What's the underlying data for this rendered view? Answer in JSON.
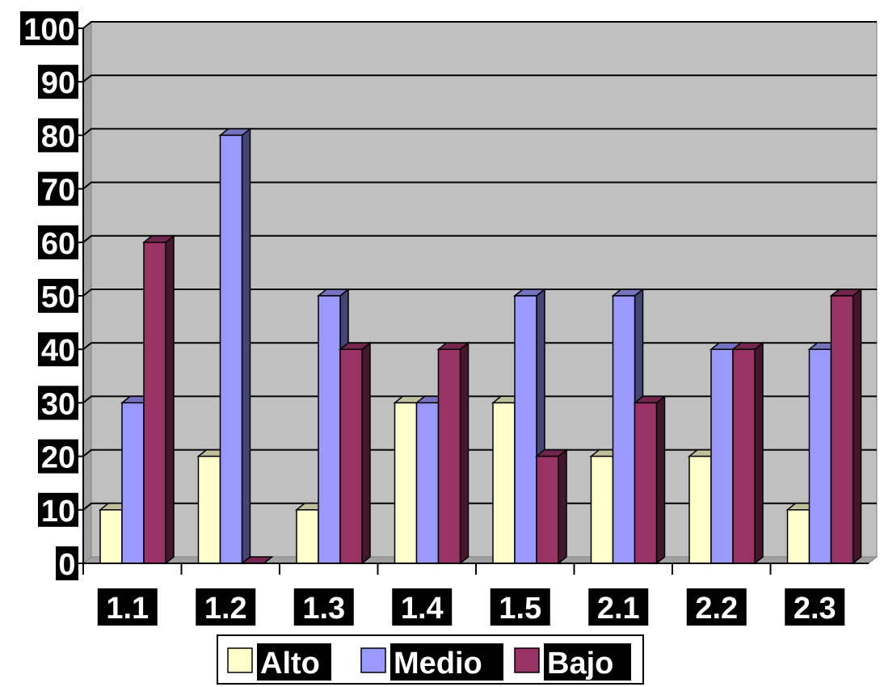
{
  "chart_data": {
    "type": "bar",
    "title": "",
    "xlabel": "",
    "ylabel": "",
    "categories": [
      "1.1",
      "1.2",
      "1.3",
      "1.4",
      "1.5",
      "2.1",
      "2.2",
      "2.3"
    ],
    "series": [
      {
        "name": "Alto",
        "color": "#FFFFCC",
        "values": [
          10,
          20,
          10,
          30,
          30,
          20,
          20,
          10
        ]
      },
      {
        "name": "Medio",
        "color": "#9999FF",
        "values": [
          30,
          80,
          50,
          30,
          50,
          50,
          40,
          40
        ]
      },
      {
        "name": "Bajo",
        "color": "#993366",
        "values": [
          60,
          0,
          40,
          40,
          20,
          30,
          40,
          50
        ]
      }
    ],
    "ylim": [
      0,
      100
    ],
    "yticks": [
      "0",
      "10",
      "20",
      "30",
      "40",
      "50",
      "60",
      "70",
      "80",
      "90",
      "100"
    ],
    "grid": true,
    "plot_background": "#C0C0C0",
    "legend_position": "bottom",
    "three_d": true
  }
}
